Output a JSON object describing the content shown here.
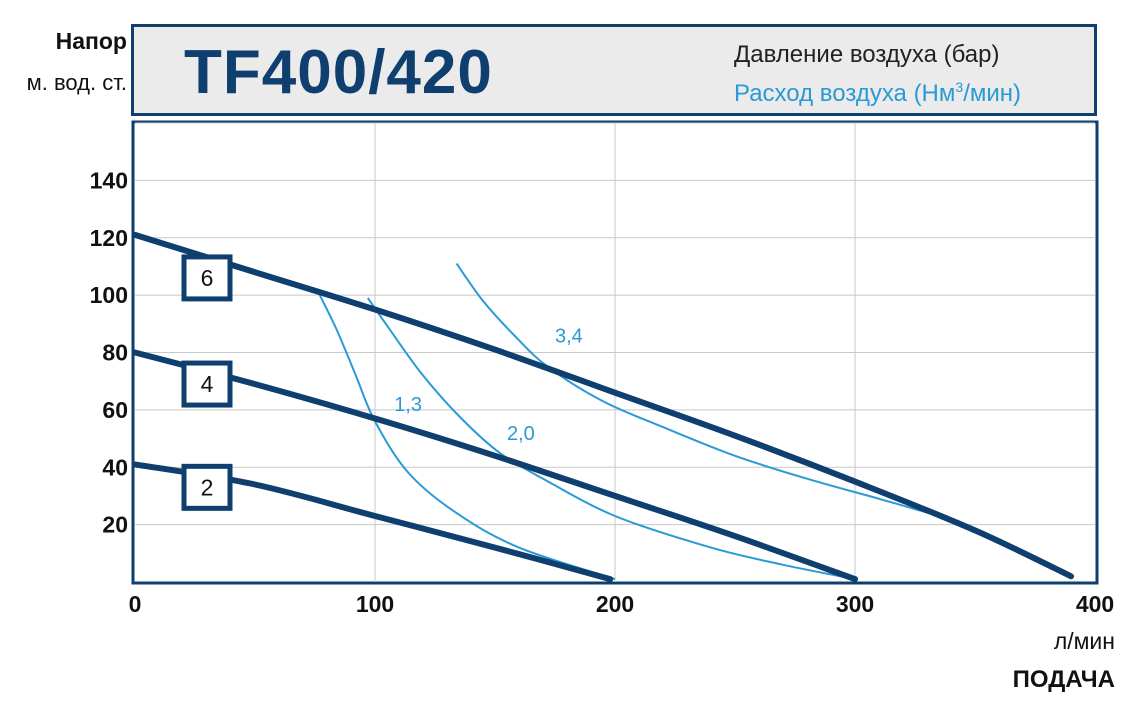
{
  "header": {
    "y_title": "Напор",
    "y_unit": "м. вод. ст.",
    "model": "TF400/420"
  },
  "legend": {
    "pressure_label": "Давление воздуха (бар)",
    "flow_label_main": "Расход воздуха (Нм",
    "flow_label_sup": "3",
    "flow_label_end": "/мин)"
  },
  "colors": {
    "pressure": "#0f3f6e",
    "flow": "#2a9ad6",
    "grid": "#c8c8c8",
    "frame": "#0f3f6e"
  },
  "chart_data": {
    "type": "line",
    "xlabel": "ПОДАЧА",
    "xunit": "л/мин",
    "xlim": [
      0,
      400
    ],
    "ylim": [
      0,
      160
    ],
    "xticks": [
      0,
      100,
      200,
      300,
      400
    ],
    "yticks": [
      20,
      40,
      60,
      80,
      100,
      120,
      140
    ],
    "grid": true,
    "legend_position": "top",
    "pressure_series": [
      {
        "name": "2",
        "label_at": [
          30,
          33
        ],
        "points": [
          [
            0,
            41
          ],
          [
            50,
            34
          ],
          [
            100,
            23
          ],
          [
            150,
            12
          ],
          [
            198,
            1
          ]
        ]
      },
      {
        "name": "4",
        "label_at": [
          30,
          69
        ],
        "points": [
          [
            0,
            80
          ],
          [
            50,
            69
          ],
          [
            100,
            57
          ],
          [
            150,
            44
          ],
          [
            200,
            30
          ],
          [
            250,
            16
          ],
          [
            300,
            1
          ]
        ]
      },
      {
        "name": "6",
        "label_at": [
          30,
          106
        ],
        "points": [
          [
            0,
            121
          ],
          [
            50,
            108
          ],
          [
            100,
            95
          ],
          [
            150,
            81
          ],
          [
            200,
            66
          ],
          [
            250,
            51
          ],
          [
            300,
            35
          ],
          [
            350,
            18
          ],
          [
            390,
            2
          ]
        ]
      }
    ],
    "flow_series": [
      {
        "name": "1,3",
        "label_at": [
          108,
          62
        ],
        "points": [
          [
            77,
            100
          ],
          [
            84,
            88
          ],
          [
            92,
            72
          ],
          [
            100,
            56
          ],
          [
            114,
            38
          ],
          [
            134,
            24
          ],
          [
            160,
            12
          ],
          [
            200,
            1
          ]
        ]
      },
      {
        "name": "2,0",
        "label_at": [
          155,
          52
        ],
        "points": [
          [
            97,
            99
          ],
          [
            107,
            87
          ],
          [
            120,
            72
          ],
          [
            136,
            57
          ],
          [
            152,
            45
          ],
          [
            170,
            36
          ],
          [
            200,
            23
          ],
          [
            240,
            12
          ],
          [
            270,
            6
          ],
          [
            300,
            1
          ]
        ]
      },
      {
        "name": "3,4",
        "label_at": [
          175,
          86
        ],
        "points": [
          [
            134,
            111
          ],
          [
            145,
            98
          ],
          [
            158,
            86
          ],
          [
            172,
            75
          ],
          [
            195,
            63
          ],
          [
            220,
            54
          ],
          [
            250,
            44
          ],
          [
            280,
            36
          ],
          [
            310,
            29
          ],
          [
            335,
            23
          ]
        ]
      }
    ]
  }
}
